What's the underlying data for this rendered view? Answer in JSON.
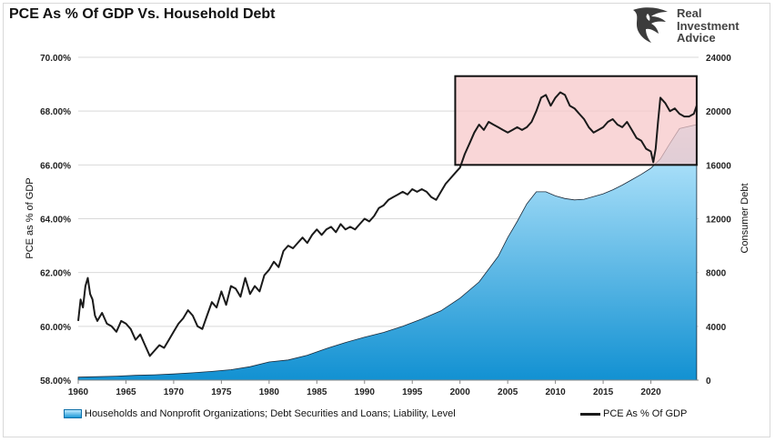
{
  "title": "PCE As % Of GDP Vs. Household Debt",
  "logo": {
    "icon": "eagle-head-icon",
    "lines": [
      "Real",
      "Investment",
      "Advice"
    ]
  },
  "chart_data": {
    "type": "line+area",
    "title": "PCE As % Of GDP Vs. Household Debt",
    "xlabel": "",
    "ylabel_left": "PCE as % of GDP",
    "ylabel_right": "Consumer Debt",
    "xlim": [
      1960,
      2025
    ],
    "ylim_left": [
      58,
      70
    ],
    "ylim_right": [
      0,
      24000
    ],
    "xticks": [
      "1960",
      "1965",
      "1970",
      "1975",
      "1980",
      "1985",
      "1990",
      "1995",
      "2000",
      "2005",
      "2010",
      "2015",
      "2020"
    ],
    "yticks_left": [
      "58.00%",
      "60.00%",
      "62.00%",
      "64.00%",
      "66.00%",
      "68.00%",
      "70.00%"
    ],
    "yticks_right": [
      "0",
      "4000",
      "8000",
      "12000",
      "16000",
      "20000",
      "24000"
    ],
    "grid": "horizontal",
    "legend_position": "bottom",
    "highlight_box": {
      "x_range": [
        1999.5,
        2024.8
      ],
      "y_range_left": [
        66.0,
        69.3
      ],
      "color": "#f7c6c8"
    },
    "series": [
      {
        "name": "Households and Nonprofit Organizations; Debt Securities and Loans; Liability, Level",
        "type": "area",
        "axis": "right",
        "color": "#1c9ad8",
        "x": [
          1960,
          1962,
          1964,
          1966,
          1968,
          1970,
          1972,
          1974,
          1976,
          1978,
          1980,
          1982,
          1984,
          1986,
          1988,
          1990,
          1992,
          1994,
          1996,
          1998,
          2000,
          2002,
          2004,
          2005,
          2006,
          2007,
          2008,
          2009,
          2010,
          2011,
          2012,
          2013,
          2014,
          2015,
          2016,
          2017,
          2018,
          2019,
          2020,
          2021,
          2022,
          2023,
          2024.8
        ],
        "values": [
          220,
          260,
          300,
          360,
          400,
          460,
          550,
          650,
          780,
          1000,
          1350,
          1500,
          1850,
          2350,
          2800,
          3200,
          3550,
          4000,
          4550,
          5150,
          6100,
          7300,
          9200,
          10600,
          11800,
          13100,
          14000,
          14000,
          13700,
          13500,
          13400,
          13450,
          13650,
          13850,
          14150,
          14500,
          14900,
          15300,
          15750,
          16450,
          17600,
          18700,
          19000
        ]
      },
      {
        "name": "PCE As % Of GDP",
        "type": "line",
        "axis": "left",
        "color": "#1a1a1a",
        "x": [
          1960.0,
          1960.25,
          1960.5,
          1960.75,
          1961.0,
          1961.25,
          1961.5,
          1961.75,
          1962.0,
          1962.5,
          1963.0,
          1963.5,
          1964.0,
          1964.5,
          1965.0,
          1965.5,
          1966.0,
          1966.5,
          1967.0,
          1967.5,
          1968.0,
          1968.5,
          1969.0,
          1969.5,
          1970.0,
          1970.5,
          1971.0,
          1971.5,
          1972.0,
          1972.5,
          1973.0,
          1973.5,
          1974.0,
          1974.5,
          1975.0,
          1975.5,
          1976.0,
          1976.5,
          1977.0,
          1977.5,
          1978.0,
          1978.5,
          1979.0,
          1979.5,
          1980.0,
          1980.5,
          1981.0,
          1981.5,
          1982.0,
          1982.5,
          1983.0,
          1983.5,
          1984.0,
          1984.5,
          1985.0,
          1985.5,
          1986.0,
          1986.5,
          1987.0,
          1987.5,
          1988.0,
          1988.5,
          1989.0,
          1989.5,
          1990.0,
          1990.5,
          1991.0,
          1991.5,
          1992.0,
          1992.5,
          1993.0,
          1993.5,
          1994.0,
          1994.5,
          1995.0,
          1995.5,
          1996.0,
          1996.5,
          1997.0,
          1997.5,
          1998.0,
          1998.5,
          1999.0,
          1999.5,
          2000.0,
          2000.5,
          2001.0,
          2001.5,
          2002.0,
          2002.5,
          2003.0,
          2003.5,
          2004.0,
          2004.5,
          2005.0,
          2005.5,
          2006.0,
          2006.5,
          2007.0,
          2007.5,
          2008.0,
          2008.5,
          2009.0,
          2009.5,
          2010.0,
          2010.5,
          2011.0,
          2011.5,
          2012.0,
          2012.5,
          2013.0,
          2013.5,
          2014.0,
          2014.5,
          2015.0,
          2015.5,
          2016.0,
          2016.5,
          2017.0,
          2017.5,
          2018.0,
          2018.5,
          2019.0,
          2019.5,
          2020.0,
          2020.25,
          2020.5,
          2020.75,
          2021.0,
          2021.5,
          2022.0,
          2022.5,
          2023.0,
          2023.5,
          2024.0,
          2024.5,
          2024.8
        ],
        "values": [
          60.2,
          61.0,
          60.7,
          61.5,
          61.8,
          61.2,
          61.0,
          60.4,
          60.2,
          60.5,
          60.1,
          60.0,
          59.8,
          60.2,
          60.1,
          59.9,
          59.5,
          59.7,
          59.3,
          58.9,
          59.1,
          59.3,
          59.2,
          59.5,
          59.8,
          60.1,
          60.3,
          60.6,
          60.4,
          60.0,
          59.9,
          60.4,
          60.9,
          60.7,
          61.3,
          60.8,
          61.5,
          61.4,
          61.1,
          61.8,
          61.2,
          61.5,
          61.3,
          61.9,
          62.1,
          62.4,
          62.2,
          62.8,
          63.0,
          62.9,
          63.1,
          63.3,
          63.1,
          63.4,
          63.6,
          63.4,
          63.6,
          63.7,
          63.5,
          63.8,
          63.6,
          63.7,
          63.6,
          63.8,
          64.0,
          63.9,
          64.1,
          64.4,
          64.5,
          64.7,
          64.8,
          64.9,
          65.0,
          64.9,
          65.1,
          65.0,
          65.1,
          65.0,
          64.8,
          64.7,
          65.0,
          65.3,
          65.5,
          65.7,
          65.9,
          66.4,
          66.8,
          67.2,
          67.5,
          67.3,
          67.6,
          67.5,
          67.4,
          67.3,
          67.2,
          67.3,
          67.4,
          67.3,
          67.4,
          67.6,
          68.0,
          68.5,
          68.6,
          68.2,
          68.5,
          68.7,
          68.6,
          68.2,
          68.1,
          67.9,
          67.7,
          67.4,
          67.2,
          67.3,
          67.4,
          67.6,
          67.7,
          67.5,
          67.4,
          67.6,
          67.3,
          67.0,
          66.9,
          66.6,
          66.5,
          66.1,
          66.6,
          67.6,
          68.5,
          68.3,
          68.0,
          68.1,
          67.9,
          67.8,
          67.8,
          67.9,
          68.2
        ]
      }
    ]
  }
}
